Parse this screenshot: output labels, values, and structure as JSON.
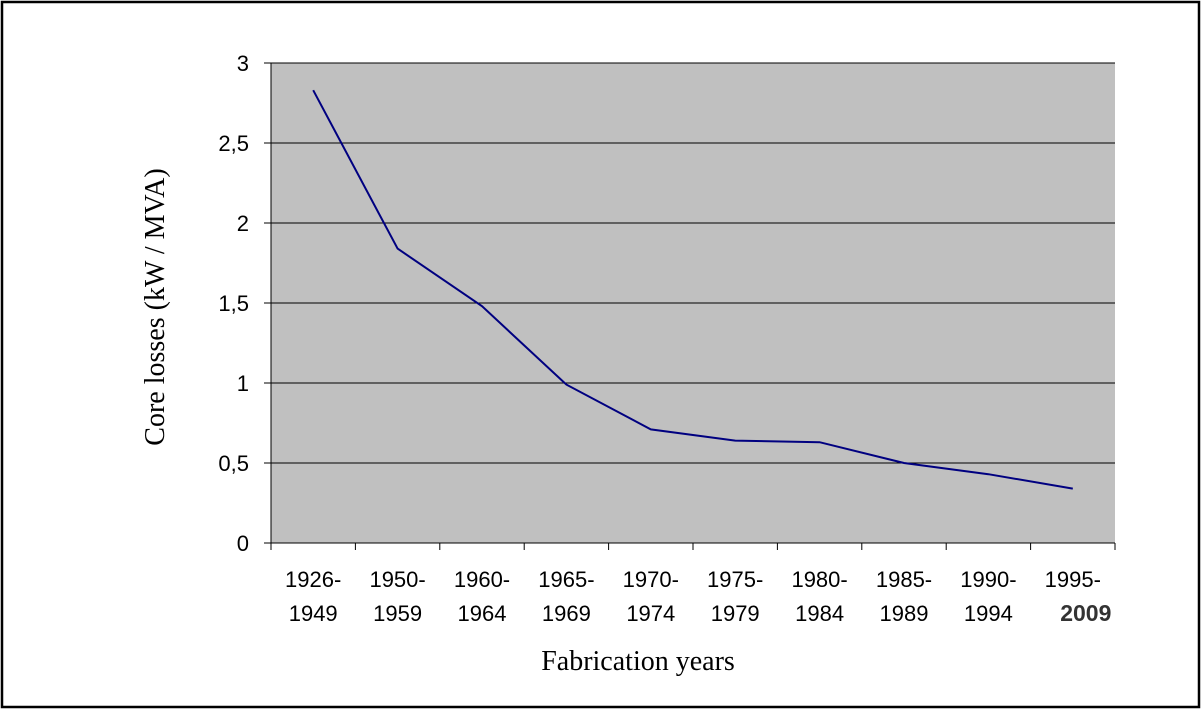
{
  "chart_data": {
    "type": "line",
    "categories": [
      [
        "1926-",
        "1949"
      ],
      [
        "1950-",
        "1959"
      ],
      [
        "1960-",
        "1964"
      ],
      [
        "1965-",
        "1969"
      ],
      [
        "1970-",
        "1974"
      ],
      [
        "1975-",
        "1979"
      ],
      [
        "1980-",
        "1984"
      ],
      [
        "1985-",
        "1989"
      ],
      [
        "1990-",
        "1994"
      ],
      [
        "1995-",
        "2009"
      ]
    ],
    "series": [
      {
        "values": [
          2.83,
          1.84,
          1.48,
          0.99,
          0.71,
          0.64,
          0.63,
          0.5,
          0.43,
          0.34
        ]
      }
    ],
    "xlabel": "Fabrication years",
    "ylabel": "Core losses (kW / MVA)",
    "ylim": [
      0,
      3
    ],
    "yticks": [
      0,
      0.5,
      1,
      1.5,
      2,
      2.5,
      3
    ],
    "ytick_labels": [
      "0",
      "0,5",
      "1",
      "1,5",
      "2",
      "2,5",
      "3"
    ],
    "grid": true,
    "line_color": "#000080",
    "plot_background": "#c0c0c0"
  }
}
